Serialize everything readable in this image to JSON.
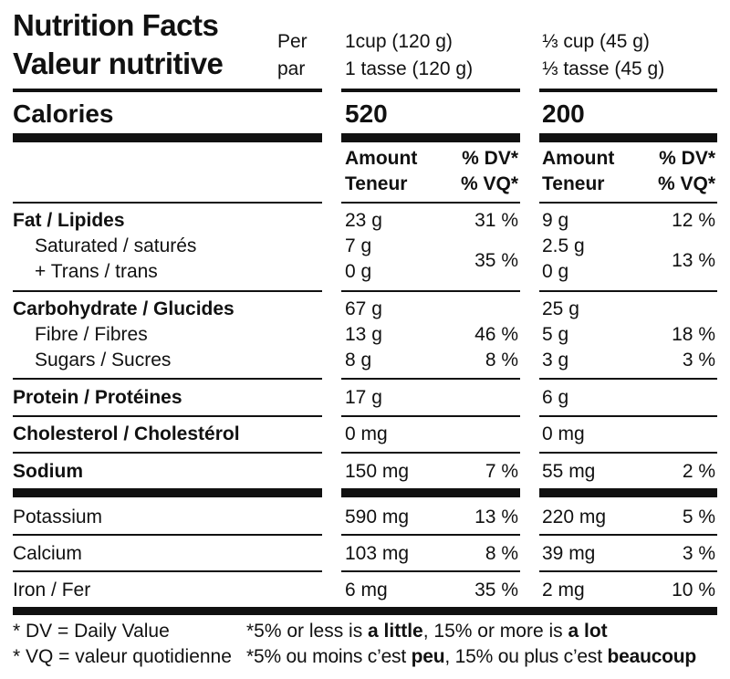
{
  "header": {
    "title_en": "Nutrition Facts",
    "title_fr": "Valeur nutritive",
    "per_en": "Per",
    "per_fr": "par",
    "col1_serving_en": "1cup (120 g)",
    "col1_serving_fr": "1 tasse (120 g)",
    "col2_serving_en": "⅓ cup (45 g)",
    "col2_serving_fr": "⅓ tasse (45 g)"
  },
  "calories": {
    "label": "Calories",
    "col1": "520",
    "col2": "200"
  },
  "column_headers": {
    "amount_en": "Amount",
    "amount_fr": "Teneur",
    "dv_en": "% DV*",
    "dv_fr": "% VQ*"
  },
  "rows": {
    "fat": {
      "label": "Fat / Lipides",
      "c1_amt": "23 g",
      "c1_dv": "31 %",
      "c2_amt": "9 g",
      "c2_dv": "12 %"
    },
    "saturated": {
      "label": "Saturated / saturés",
      "c1_amt": "7 g",
      "c2_amt": "2.5 g"
    },
    "trans": {
      "label": "+ Trans / trans",
      "c1_amt": "0 g",
      "c2_amt": "0 g"
    },
    "sat_trans_dv": {
      "c1_dv": "35 %",
      "c2_dv": "13 %"
    },
    "carbohydrate": {
      "label": "Carbohydrate / Glucides",
      "c1_amt": "67 g",
      "c2_amt": "25 g"
    },
    "fibre": {
      "label": "Fibre / Fibres",
      "c1_amt": "13 g",
      "c1_dv": "46 %",
      "c2_amt": "5 g",
      "c2_dv": "18 %"
    },
    "sugars": {
      "label": "Sugars / Sucres",
      "c1_amt": "8 g",
      "c1_dv": "8 %",
      "c2_amt": "3 g",
      "c2_dv": "3 %"
    },
    "protein": {
      "label": "Protein / Protéines",
      "c1_amt": "17 g",
      "c2_amt": "6 g"
    },
    "cholesterol": {
      "label": "Cholesterol / Cholestérol",
      "c1_amt": "0 mg",
      "c2_amt": "0 mg"
    },
    "sodium": {
      "label": "Sodium",
      "c1_amt": "150 mg",
      "c1_dv": "7 %",
      "c2_amt": "55 mg",
      "c2_dv": "2 %"
    },
    "potassium": {
      "label": "Potassium",
      "c1_amt": "590 mg",
      "c1_dv": "13 %",
      "c2_amt": "220 mg",
      "c2_dv": "5 %"
    },
    "calcium": {
      "label": "Calcium",
      "c1_amt": "103 mg",
      "c1_dv": "8 %",
      "c2_amt": "39 mg",
      "c2_dv": "3 %"
    },
    "iron": {
      "label": "Iron / Fer",
      "c1_amt": "6 mg",
      "c1_dv": "35 %",
      "c2_amt": "2 mg",
      "c2_dv": "10 %"
    }
  },
  "footnote": {
    "dv_def": "* DV = Daily Value",
    "vq_def": "* VQ = valeur quotidienne",
    "en_prefix": "*5% or less is ",
    "en_little": "a little",
    "en_mid": ", 15% or more is ",
    "en_lot": "a lot",
    "fr_prefix": "*5% ou moins c’est ",
    "fr_peu": "peu",
    "fr_mid": ", 15% ou plus c’est ",
    "fr_beaucoup": "beaucoup"
  }
}
